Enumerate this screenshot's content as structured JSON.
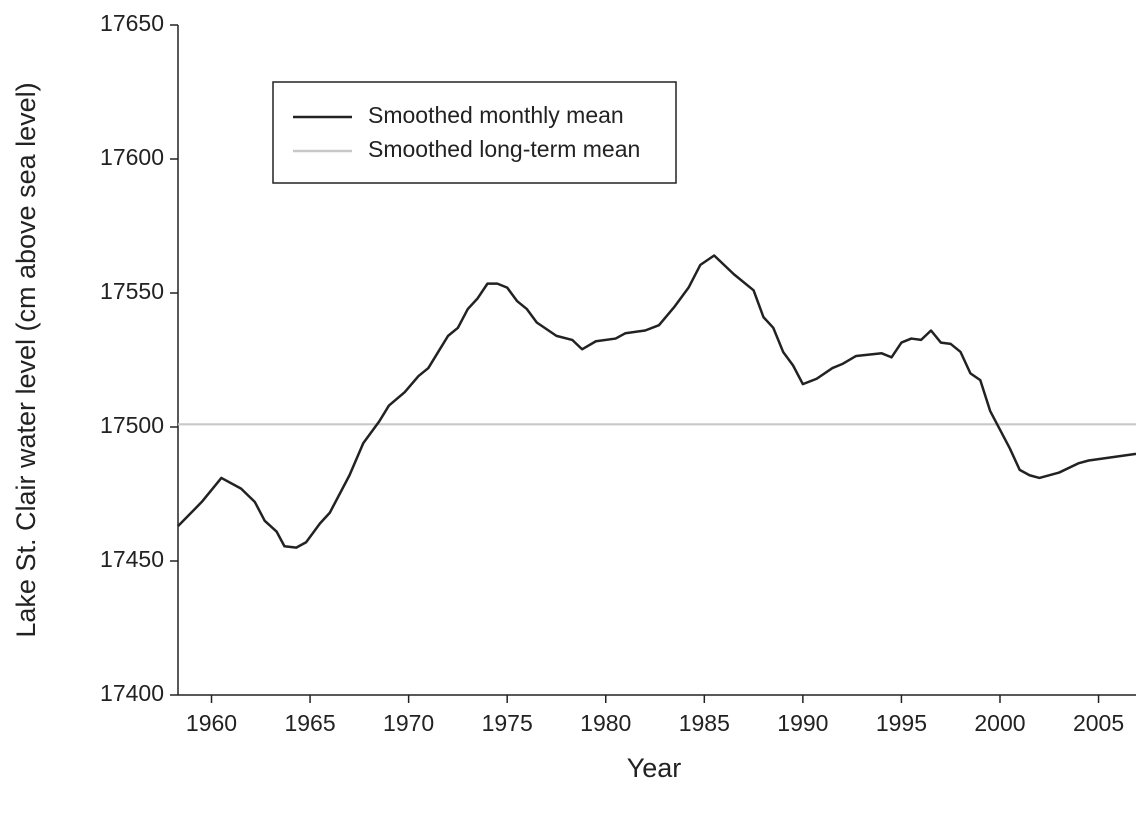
{
  "chart_data": {
    "type": "line",
    "xlabel": "Year",
    "ylabel": "Lake St. Clair water level (cm above sea level)",
    "xlim": [
      1958.3,
      2006.9
    ],
    "ylim": [
      17400,
      17650
    ],
    "xticks": [
      1960,
      1965,
      1970,
      1975,
      1980,
      1985,
      1990,
      1995,
      2000,
      2005
    ],
    "yticks": [
      17400,
      17450,
      17500,
      17550,
      17600,
      17650
    ],
    "legend": "upper left",
    "series": [
      {
        "name": "Smoothed monthly mean",
        "color": "#222222",
        "x": [
          1958.3,
          1959.5,
          1960.5,
          1961.5,
          1962.2,
          1962.7,
          1963.3,
          1963.7,
          1964.3,
          1964.8,
          1965.5,
          1966,
          1967,
          1967.7,
          1968.5,
          1969,
          1969.8,
          1970.5,
          1971,
          1971.5,
          1972,
          1972.5,
          1973,
          1973.5,
          1974,
          1974.5,
          1975,
          1975.5,
          1976,
          1976.5,
          1977.5,
          1978.3,
          1978.8,
          1979.5,
          1980.5,
          1981,
          1982,
          1982.7,
          1983.5,
          1984.2,
          1984.8,
          1985.5,
          1986.5,
          1987.5,
          1988,
          1988.5,
          1989,
          1989.5,
          1990,
          1990.7,
          1991.5,
          1992,
          1992.7,
          1994,
          1994.5,
          1995,
          1995.5,
          1996,
          1996.5,
          1997,
          1997.5,
          1998,
          1998.5,
          1999,
          1999.5,
          2000,
          2000.5,
          2001,
          2001.5,
          2002,
          2003,
          2004,
          2004.5,
          2005,
          2006.9
        ],
        "values": [
          17463,
          17472,
          17481,
          17477,
          17472,
          17465,
          17461,
          17455.5,
          17455,
          17457,
          17464,
          17468,
          17482,
          17494,
          17502,
          17508,
          17513,
          17519,
          17522,
          17528,
          17534,
          17537,
          17544,
          17548,
          17553.5,
          17553.5,
          17552,
          17547,
          17544,
          17539,
          17534,
          17532.5,
          17529,
          17532,
          17533,
          17535,
          17536,
          17538,
          17545,
          17552,
          17560.5,
          17564,
          17557,
          17551,
          17541,
          17537,
          17528,
          17523,
          17516,
          17518,
          17522,
          17523.5,
          17526.5,
          17527.5,
          17526,
          17531.5,
          17533,
          17532.5,
          17536,
          17531.5,
          17531,
          17528,
          17520,
          17517.5,
          17506,
          17499,
          17492,
          17484,
          17482,
          17481,
          17483,
          17486.5,
          17487.5,
          17488,
          17490
        ]
      },
      {
        "name": "Smoothed long-term mean",
        "color": "#c8c8c8",
        "x": [
          1958.3,
          2006.9
        ],
        "values": [
          17501,
          17501
        ]
      }
    ]
  }
}
